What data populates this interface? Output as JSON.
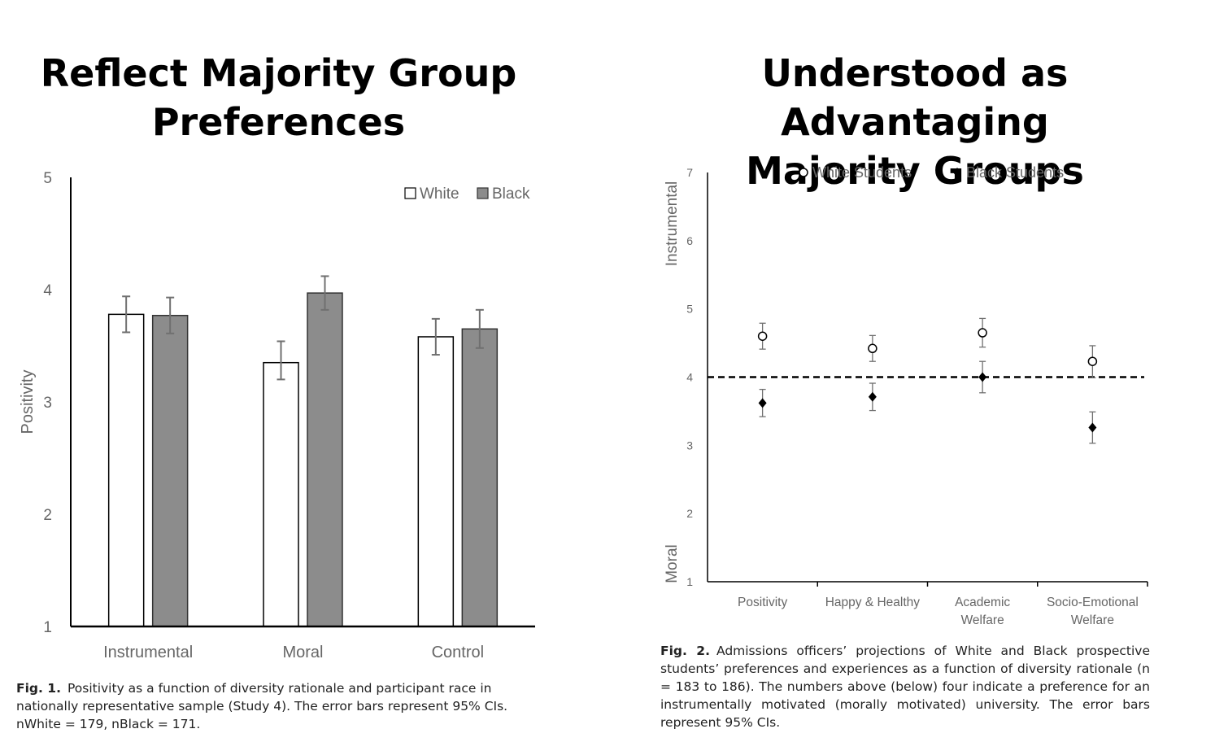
{
  "titles": {
    "left": [
      "Reflect Majority Group",
      "Preferences"
    ],
    "right": [
      "Understood as Advantaging",
      "Majority Groups"
    ]
  },
  "captions": {
    "left": {
      "label": "Fig. 1.",
      "text": "Positivity as a function of diversity rationale and participant race in nationally representative sample (Study 4). The error bars represent 95% CIs.",
      "n_line": "nWhite = 179, nBlack = 171."
    },
    "right": {
      "label": "Fig. 2.",
      "text": "Admissions officers’ projections of White and Black prospective students’ preferences and experiences as a function of diversity rationale (n = 183 to 186). The numbers above (below) four indicate a preference for an instrumentally motivated (morally motivated) university. The error bars represent 95% CIs."
    }
  },
  "colors": {
    "white_bar": "#ffffff",
    "black_bar": "#8c8c8c",
    "axis": "#000000",
    "error_bar": "#707070",
    "tick_text": "#666666"
  },
  "chart_data": [
    {
      "type": "bar",
      "ylabel": "Positivity",
      "ylim": [
        1,
        5
      ],
      "yticks": [
        1,
        2,
        3,
        4,
        5
      ],
      "categories": [
        "Instrumental",
        "Moral",
        "Control"
      ],
      "legend_position": "top-right",
      "series": [
        {
          "name": "White",
          "values": [
            3.78,
            3.35,
            3.58
          ],
          "ci_low": [
            3.62,
            3.2,
            3.42
          ],
          "ci_high": [
            3.94,
            3.54,
            3.74
          ]
        },
        {
          "name": "Black",
          "values": [
            3.77,
            3.97,
            3.65
          ],
          "ci_low": [
            3.61,
            3.82,
            3.48
          ],
          "ci_high": [
            3.93,
            4.12,
            3.82
          ]
        }
      ],
      "grid": false
    },
    {
      "type": "scatter",
      "ylim": [
        1,
        7
      ],
      "yticks": [
        1,
        2,
        3,
        4,
        5,
        6,
        7
      ],
      "ylabel_top": "Instrumental",
      "ylabel_bottom": "Moral",
      "categories": [
        "Positivity",
        "Happy & Healthy",
        "Academic Welfare",
        "Socio-Emotional Welfare"
      ],
      "category_lines": [
        [
          "Positivity"
        ],
        [
          "Happy & Healthy"
        ],
        [
          "Academic",
          "Welfare"
        ],
        [
          "Socio-Emotional",
          "Welfare"
        ]
      ],
      "reference_line": 4,
      "legend_position": "top",
      "series": [
        {
          "name": "White Students",
          "marker": "open-circle",
          "values": [
            4.6,
            4.42,
            4.65,
            4.23
          ],
          "ci_low": [
            4.41,
            4.23,
            4.44,
            3.99
          ],
          "ci_high": [
            4.79,
            4.61,
            4.86,
            4.46
          ]
        },
        {
          "name": "Black Students",
          "marker": "filled-diamond",
          "values": [
            3.62,
            3.71,
            4.0,
            3.26
          ],
          "ci_low": [
            3.42,
            3.51,
            3.77,
            3.03
          ],
          "ci_high": [
            3.82,
            3.91,
            4.23,
            3.49
          ]
        }
      ],
      "grid": false
    }
  ]
}
